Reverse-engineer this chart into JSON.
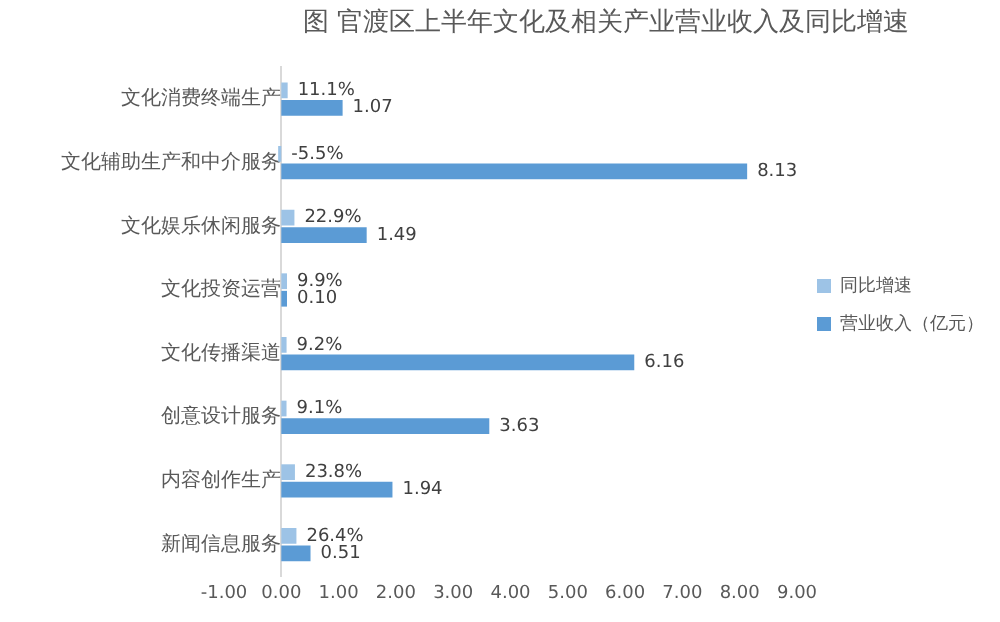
{
  "chart_data": {
    "type": "bar",
    "orientation": "horizontal",
    "title": "图 官渡区上半年文化及相关产业营业收入及同比增速",
    "categories": [
      "文化消费终端生产",
      "文化辅助生产和中介服务",
      "文化娱乐休闲服务",
      "文化投资运营",
      "文化传播渠道",
      "创意设计服务",
      "内容创作生产",
      "新闻信息服务"
    ],
    "series": [
      {
        "name": "同比增速",
        "color": "#9dc3e6",
        "values": [
          0.111,
          -0.055,
          0.229,
          0.099,
          0.092,
          0.091,
          0.238,
          0.264
        ],
        "value_labels": [
          "11.1%",
          "-5.5%",
          "22.9%",
          "9.9%",
          "9.2%",
          "9.1%",
          "23.8%",
          "26.4%"
        ]
      },
      {
        "name": "营业收入（亿元）",
        "color": "#5b9bd5",
        "values": [
          1.07,
          8.13,
          1.49,
          0.1,
          6.16,
          3.63,
          1.94,
          0.51
        ],
        "value_labels": [
          "1.07",
          "8.13",
          "1.49",
          "0.10",
          "6.16",
          "3.63",
          "1.94",
          "0.51"
        ]
      }
    ],
    "xlim": [
      -1,
      9
    ],
    "xticks": [
      {
        "value": -1,
        "label": "-1.00"
      },
      {
        "value": 0,
        "label": "0.00"
      },
      {
        "value": 1,
        "label": "1.00"
      },
      {
        "value": 2,
        "label": "2.00"
      },
      {
        "value": 3,
        "label": "3.00"
      },
      {
        "value": 4,
        "label": "4.00"
      },
      {
        "value": 5,
        "label": "5.00"
      },
      {
        "value": 6,
        "label": "6.00"
      },
      {
        "value": 7,
        "label": "7.00"
      },
      {
        "value": 8,
        "label": "8.00"
      },
      {
        "value": 9,
        "label": "9.00"
      }
    ],
    "grid": false,
    "legend": "right"
  }
}
